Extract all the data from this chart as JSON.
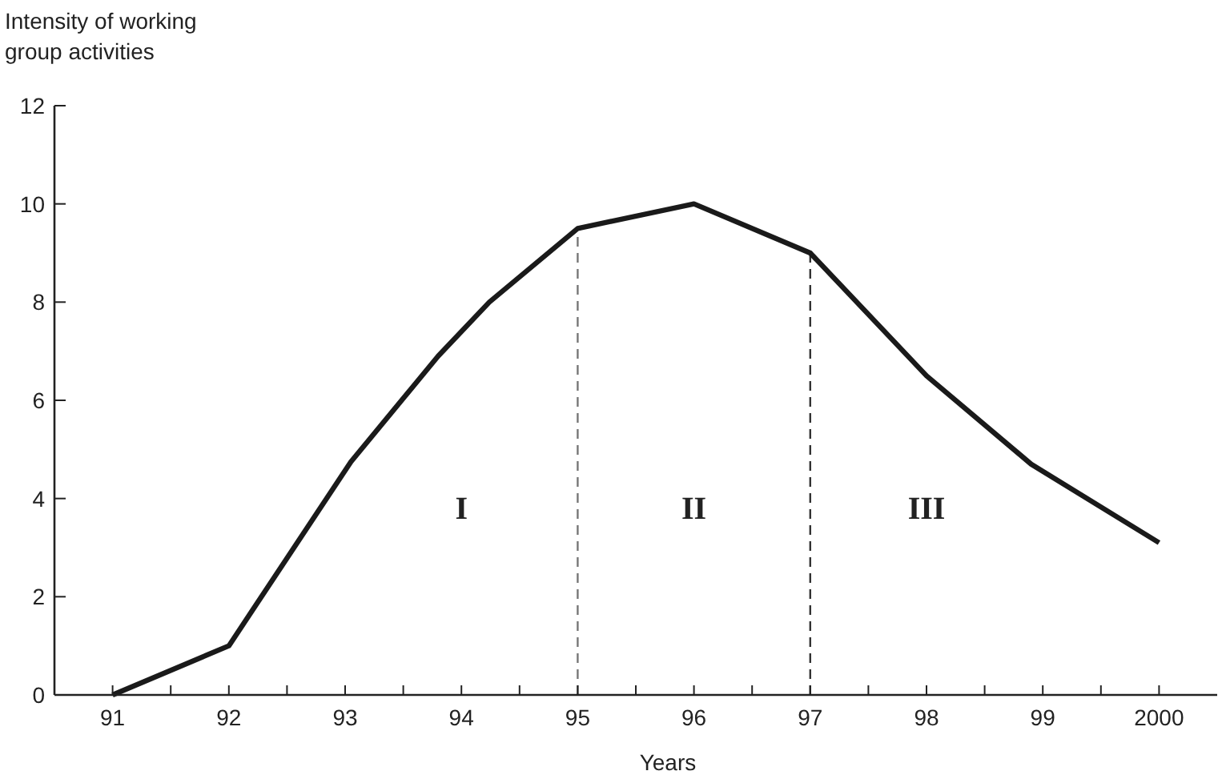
{
  "chart_data": {
    "type": "line",
    "xlabel": "Years",
    "ylabel": "Intensity of working group activities",
    "x": [
      1991,
      1992,
      1993.05,
      1993.8,
      1994.24,
      1995,
      1996,
      1997,
      1998,
      1998.9,
      2000
    ],
    "series": [
      {
        "color": "#1a1a1a",
        "values": [
          0,
          1,
          4.75,
          6.9,
          8,
          9.5,
          10,
          9,
          6.5,
          4.7,
          3.1
        ]
      }
    ],
    "xlim": [
      1990.5,
      2000.5
    ],
    "xticks": [
      {
        "value": 1991,
        "label": "91"
      },
      {
        "value": 1991.5,
        "label": null
      },
      {
        "value": 1992,
        "label": "92"
      },
      {
        "value": 1992.5,
        "label": null
      },
      {
        "value": 1993,
        "label": "93"
      },
      {
        "value": 1993.5,
        "label": null
      },
      {
        "value": 1994,
        "label": "94"
      },
      {
        "value": 1994.5,
        "label": null
      },
      {
        "value": 1995,
        "label": "95"
      },
      {
        "value": 1995.5,
        "label": null
      },
      {
        "value": 1996,
        "label": "96"
      },
      {
        "value": 1996.5,
        "label": null
      },
      {
        "value": 1997,
        "label": "97"
      },
      {
        "value": 1997.5,
        "label": null
      },
      {
        "value": 1998,
        "label": "98"
      },
      {
        "value": 1998.5,
        "label": null
      },
      {
        "value": 1999,
        "label": "99"
      },
      {
        "value": 1999.5,
        "label": null
      },
      {
        "value": 2000,
        "label": "2000"
      }
    ],
    "ylim": [
      0,
      12
    ],
    "yticks": [
      0,
      2,
      4,
      6,
      8,
      10,
      12
    ],
    "grid": false,
    "marker": "none",
    "line_style": "solid",
    "ref_lines": [
      {
        "axis": "x",
        "value": 1995,
        "color": "#777777",
        "line_style": "dashed"
      },
      {
        "axis": "x",
        "value": 1997,
        "color": "#333333",
        "line_style": "dashed"
      }
    ],
    "annotations": [
      "I",
      "II",
      "III"
    ]
  }
}
